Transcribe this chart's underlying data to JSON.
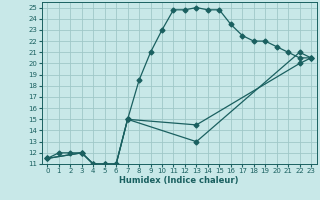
{
  "title": "",
  "xlabel": "Humidex (Indice chaleur)",
  "bg_color": "#c8e8e8",
  "grid_color": "#a0c8c8",
  "line_color": "#1a6060",
  "xlim": [
    -0.5,
    23.5
  ],
  "ylim": [
    11,
    25.5
  ],
  "xticks": [
    0,
    1,
    2,
    3,
    4,
    5,
    6,
    7,
    8,
    9,
    10,
    11,
    12,
    13,
    14,
    15,
    16,
    17,
    18,
    19,
    20,
    21,
    22,
    23
  ],
  "yticks": [
    11,
    12,
    13,
    14,
    15,
    16,
    17,
    18,
    19,
    20,
    21,
    22,
    23,
    24,
    25
  ],
  "line1_x": [
    0,
    1,
    2,
    3,
    4,
    5,
    6,
    7,
    8,
    9,
    10,
    11,
    12,
    13,
    14,
    15,
    16,
    17,
    18,
    19,
    20,
    21,
    22,
    23
  ],
  "line1_y": [
    11.5,
    12,
    12,
    12,
    11,
    11,
    11,
    15,
    18.5,
    21,
    23,
    24.8,
    24.8,
    25,
    24.8,
    24.8,
    23.5,
    22.5,
    22,
    22,
    21.5,
    21,
    20.5,
    20.5
  ],
  "line2_x": [
    0,
    3,
    4,
    5,
    6,
    7,
    13,
    22,
    23
  ],
  "line2_y": [
    11.5,
    12,
    11,
    11,
    11,
    15,
    13,
    21,
    20.5
  ],
  "line3_x": [
    0,
    3,
    4,
    5,
    6,
    7,
    13,
    22,
    23
  ],
  "line3_y": [
    11.5,
    12,
    11,
    11,
    11,
    15,
    14.5,
    20,
    20.5
  ]
}
